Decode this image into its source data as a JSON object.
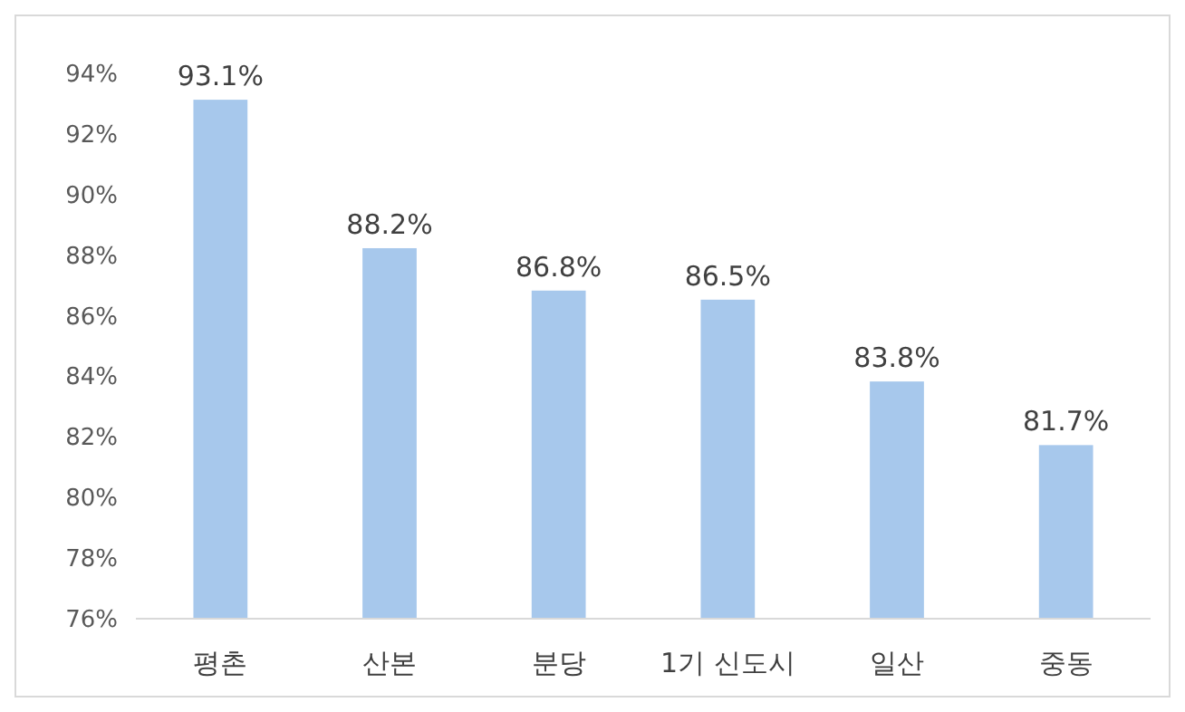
{
  "chart_data": {
    "type": "bar",
    "categories": [
      "평촌",
      "산본",
      "분당",
      "1기 신도시",
      "일산",
      "중동"
    ],
    "values": [
      93.1,
      88.2,
      86.8,
      86.5,
      83.8,
      81.7
    ],
    "value_labels": [
      "93.1%",
      "88.2%",
      "86.8%",
      "86.5%",
      "83.8%",
      "81.7%"
    ],
    "color": "#a7c8ec",
    "ylim": [
      76,
      94
    ],
    "yticks": [
      {
        "value": 76,
        "label": "76%"
      },
      {
        "value": 78,
        "label": "78%"
      },
      {
        "value": 80,
        "label": "80%"
      },
      {
        "value": 82,
        "label": "82%"
      },
      {
        "value": 84,
        "label": "84%"
      },
      {
        "value": 86,
        "label": "86%"
      },
      {
        "value": 88,
        "label": "88%"
      },
      {
        "value": 90,
        "label": "90%"
      },
      {
        "value": 92,
        "label": "92%"
      },
      {
        "value": 94,
        "label": "94%"
      }
    ],
    "grid": false,
    "legend": false
  }
}
